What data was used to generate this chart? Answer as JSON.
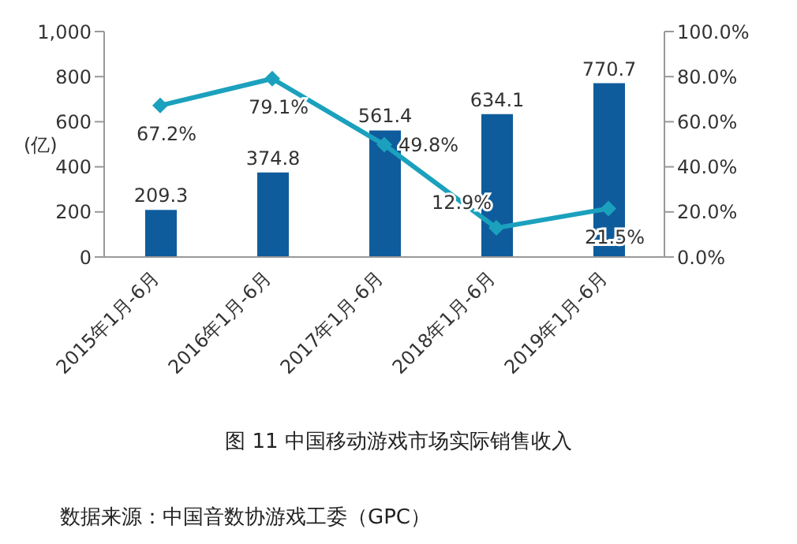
{
  "chart_data": {
    "type": "bar",
    "title": "图 11  中国移动游戏市场实际销售收入",
    "ylabel": "(亿)",
    "categories": [
      "2015年1月-6月",
      "2016年1月-6月",
      "2017年1月-6月",
      "2018年1月-6月",
      "2019年1月-6月"
    ],
    "series": [
      {
        "color": "#0f5c9c",
        "values": [
          209.3,
          374.8,
          561.4,
          634.1,
          770.7
        ],
        "value_labels": [
          "209.3",
          "374.8",
          "561.4",
          "634.1",
          "770.7"
        ]
      },
      {
        "type": "line",
        "axis": "y2",
        "color": "#1ba1bd",
        "values": [
          67.2,
          79.1,
          49.8,
          12.9,
          21.5
        ],
        "value_labels": [
          "67.2%",
          "79.1%",
          "49.8%",
          "12.9%",
          "21.5%"
        ]
      }
    ],
    "ylim": [
      0,
      1000
    ],
    "yticks": [
      0,
      200,
      400,
      600,
      800,
      {
        "value": 1000,
        "label": "1,000"
      }
    ],
    "y2lim": [
      0,
      100
    ],
    "y2ticks": [
      {
        "value": 0,
        "label": "0.0%"
      },
      {
        "value": 20,
        "label": "20.0%"
      },
      {
        "value": 40,
        "label": "40.0%"
      },
      {
        "value": 60,
        "label": "60.0%"
      },
      {
        "value": 80,
        "label": "80.0%"
      },
      {
        "value": 100,
        "label": "100.0%"
      }
    ],
    "marker": "diamond",
    "line_style": "solid",
    "grid": false,
    "legend": false,
    "annotations": [
      "数据来源：中国音数协游戏工委（GPC）"
    ]
  }
}
